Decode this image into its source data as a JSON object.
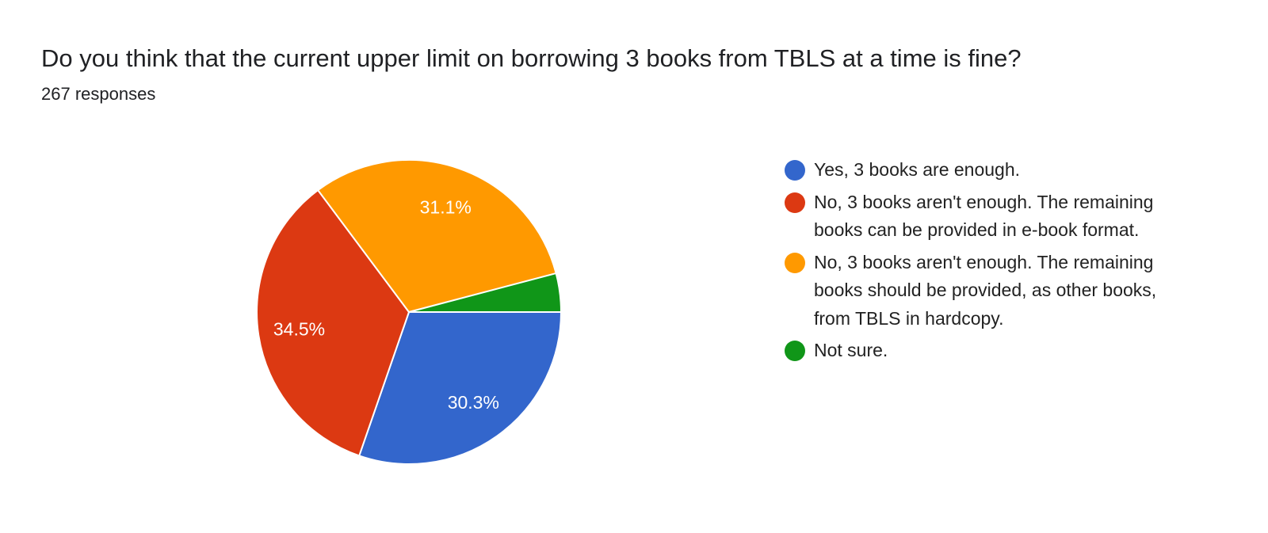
{
  "chart_data": {
    "type": "pie",
    "title": "Do you think that the current upper limit on borrowing 3 books from TBLS at a time is fine?",
    "subtitle": "267 responses",
    "legend_position": "right",
    "slices": [
      {
        "label": "Yes, 3 books are enough.",
        "value": 30.3,
        "data_label": "30.3%",
        "color": "#3366cc"
      },
      {
        "label": "No, 3 books aren't enough. The remaining books can be provided in e-book format.",
        "value": 34.5,
        "data_label": "34.5%",
        "color": "#dc3912"
      },
      {
        "label": "No, 3 books aren't enough. The remaining books should be provided, as other books, from TBLS in hardcopy.",
        "value": 31.1,
        "data_label": "31.1%",
        "color": "#ff9900"
      },
      {
        "label": "Not sure.",
        "value": 4.1,
        "data_label": "",
        "color": "#109618"
      }
    ]
  }
}
